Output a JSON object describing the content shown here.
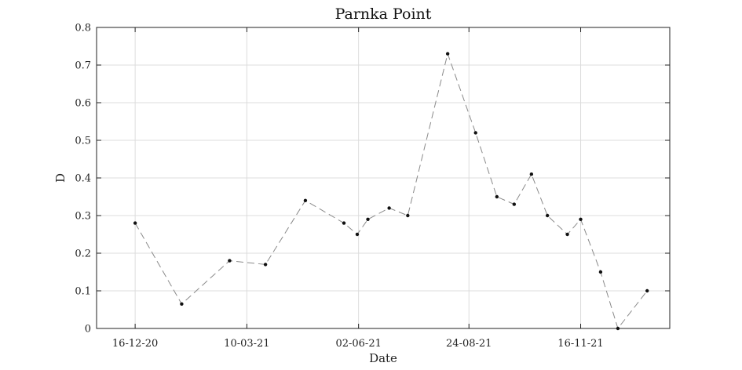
{
  "chart_data": {
    "type": "line",
    "title": "Parnka Point",
    "xlabel": "Date",
    "ylabel": "D",
    "ylim": [
      0,
      0.8
    ],
    "yticks": [
      0,
      0.1,
      0.2,
      0.3,
      0.4,
      0.5,
      0.6,
      0.7,
      0.8
    ],
    "ytick_labels": [
      "0",
      "0.1",
      "0.2",
      "0.3",
      "0.4",
      "0.5",
      "0.6",
      "0.7",
      "0.8"
    ],
    "xlim": [
      "2020-11-17",
      "2022-01-22"
    ],
    "xticks": [
      "2020-12-16",
      "2021-03-10",
      "2021-06-02",
      "2021-08-24",
      "2021-11-16"
    ],
    "xtick_labels": [
      "16-12-20",
      "10-03-21",
      "02-06-21",
      "24-08-21",
      "16-11-21"
    ],
    "grid": true,
    "line_style": "dashed",
    "line_color": "#8a8a8a",
    "marker_color": "#111111",
    "series": [
      {
        "x": [
          "2020-12-16",
          "2021-01-20",
          "2021-02-25",
          "2021-03-24",
          "2021-04-23",
          "2021-05-22",
          "2021-06-01",
          "2021-06-09",
          "2021-06-25",
          "2021-07-09",
          "2021-08-08",
          "2021-08-29",
          "2021-09-14",
          "2021-09-27",
          "2021-10-10",
          "2021-10-22",
          "2021-11-06",
          "2021-11-16",
          "2021-12-01",
          "2021-12-14",
          "2022-01-05"
        ],
        "y": [
          0.28,
          0.065,
          0.18,
          0.17,
          0.34,
          0.28,
          0.25,
          0.29,
          0.32,
          0.3,
          0.73,
          0.52,
          0.35,
          0.33,
          0.41,
          0.3,
          0.25,
          0.29,
          0.15,
          0.0,
          0.1
        ]
      }
    ]
  }
}
